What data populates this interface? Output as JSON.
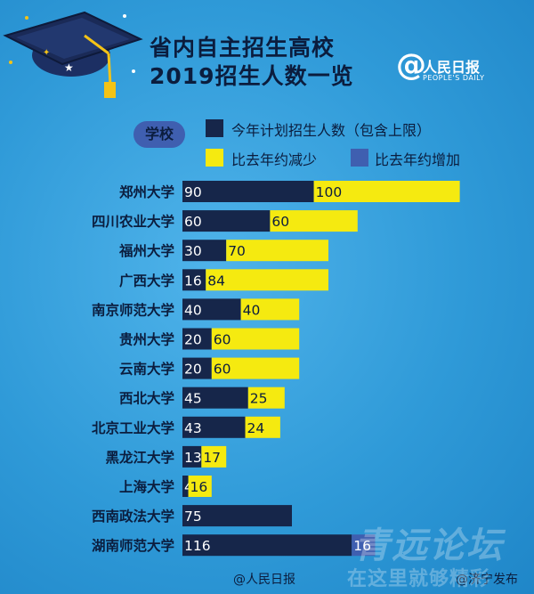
{
  "title_line1": "省内自主招生高校",
  "title_line2": "2019招生人数一览",
  "brand": {
    "at": "@",
    "name": "人民日报",
    "en": "PEOPLE'S DAILY"
  },
  "school_tag": "学校",
  "legend": [
    {
      "label": "今年计划招生人数（包含上限）",
      "color": "#16264a"
    },
    {
      "label": "比去年约减少",
      "color": "#f5ea10"
    },
    {
      "label": "比去年约增加",
      "color": "#3f5fb0"
    }
  ],
  "colors": {
    "plan": "#16264a",
    "decrease": "#f5ea10",
    "increase": "#3f5fb0",
    "label_text": "#0b1d3e"
  },
  "chart_data": {
    "type": "bar",
    "orientation": "horizontal",
    "stacked": true,
    "categories": [
      "郑州大学",
      "四川农业大学",
      "福州大学",
      "广西大学",
      "南京师范大学",
      "贵州大学",
      "云南大学",
      "西北大学",
      "北京工业大学",
      "黑龙江大学",
      "上海大学",
      "西南政法大学",
      "湖南师范大学"
    ],
    "series": [
      {
        "name": "今年计划招生人数（包含上限）",
        "values": [
          90,
          60,
          30,
          16,
          40,
          20,
          20,
          45,
          43,
          13,
          4,
          75,
          116
        ]
      },
      {
        "name": "比去年约减少",
        "values": [
          100,
          60,
          70,
          84,
          40,
          60,
          60,
          25,
          24,
          17,
          16,
          null,
          null
        ]
      },
      {
        "name": "比去年约增加",
        "values": [
          null,
          null,
          null,
          null,
          null,
          null,
          null,
          null,
          null,
          null,
          null,
          null,
          16
        ]
      }
    ]
  },
  "footer": {
    "left": "@人民日报",
    "right": "@济宁发布"
  },
  "watermark": {
    "line1": "青远论坛",
    "line2": "在这里就够精彩"
  }
}
